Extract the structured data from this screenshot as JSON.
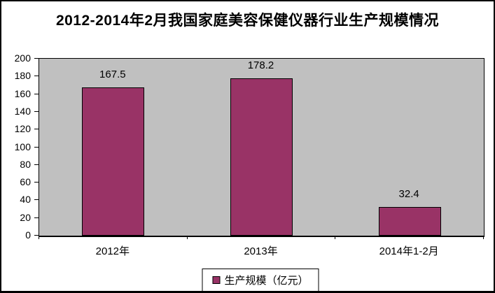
{
  "chart_data": {
    "type": "bar",
    "title": "2012-2014年2月我国家庭美容保健仪器行业生产规模情况",
    "categories": [
      "2012年",
      "2013年",
      "2014年1-2月"
    ],
    "values": [
      167.5,
      178.2,
      32.4
    ],
    "data_labels": [
      "167.5",
      "178.2",
      "32.4"
    ],
    "legend_label": "生产规模（亿元）",
    "legend_position": "bottom",
    "xlabel": "",
    "ylabel": "",
    "ylim": [
      0,
      200
    ],
    "yticks": [
      0,
      20,
      40,
      60,
      80,
      100,
      120,
      140,
      160,
      180,
      200
    ],
    "grid": false,
    "bar_color": "#993366",
    "plot_bg": "#C0C0C0",
    "border_color": "#000000",
    "page_bg": "#FFFFFF"
  }
}
